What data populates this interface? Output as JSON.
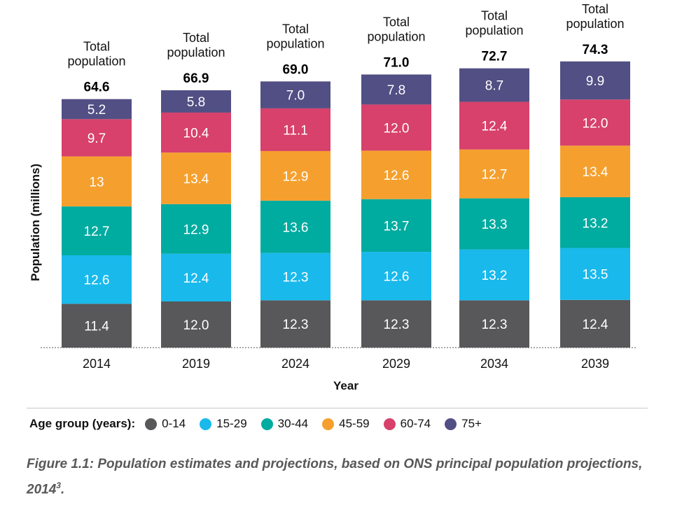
{
  "chart_data": {
    "type": "stacked-bar",
    "categories": [
      "2014",
      "2019",
      "2024",
      "2029",
      "2034",
      "2039"
    ],
    "xlabel": "Year",
    "ylabel": "Population (millions)",
    "series": [
      {
        "name": "0-14",
        "color": "#58585a",
        "values": [
          11.4,
          12.0,
          12.3,
          12.3,
          12.3,
          12.4
        ],
        "labels": [
          "11.4",
          "12.0",
          "12.3",
          "12.3",
          "12.3",
          "12.4"
        ]
      },
      {
        "name": "15-29",
        "color": "#19b9ec",
        "values": [
          12.6,
          12.4,
          12.3,
          12.6,
          13.2,
          13.5
        ],
        "labels": [
          "12.6",
          "12.4",
          "12.3",
          "12.6",
          "13.2",
          "13.5"
        ]
      },
      {
        "name": "30-44",
        "color": "#00aba0",
        "values": [
          12.7,
          12.9,
          13.6,
          13.7,
          13.3,
          13.2
        ],
        "labels": [
          "12.7",
          "12.9",
          "13.6",
          "13.7",
          "13.3",
          "13.2"
        ]
      },
      {
        "name": "45-59",
        "color": "#f5a02e",
        "values": [
          13,
          13.4,
          12.9,
          12.6,
          12.7,
          13.4
        ],
        "labels": [
          "13",
          "13.4",
          "12.9",
          "12.6",
          "12.7",
          "13.4"
        ]
      },
      {
        "name": "60-74",
        "color": "#d7416b",
        "values": [
          9.7,
          10.4,
          11.1,
          12.0,
          12.4,
          12.0
        ],
        "labels": [
          "9.7",
          "10.4",
          "11.1",
          "12.0",
          "12.4",
          "12.0"
        ]
      },
      {
        "name": "75+",
        "color": "#524f85",
        "values": [
          5.2,
          5.8,
          7.0,
          7.8,
          8.7,
          9.9
        ],
        "labels": [
          "5.2",
          "5.8",
          "7.0",
          "7.8",
          "8.7",
          "9.9"
        ]
      }
    ],
    "total_label_line1": "Total",
    "total_label_line2": "population",
    "totals": [
      "64.6",
      "66.9",
      "69.0",
      "71.0",
      "72.7",
      "74.3"
    ],
    "grid": false,
    "legend_position": "bottom"
  },
  "legend": {
    "title": "Age group (years):"
  },
  "caption": {
    "text": "Figure 1.1: Population estimates and projections, based on ONS principal population projections, 2014",
    "superscript": "3",
    "suffix": "."
  }
}
